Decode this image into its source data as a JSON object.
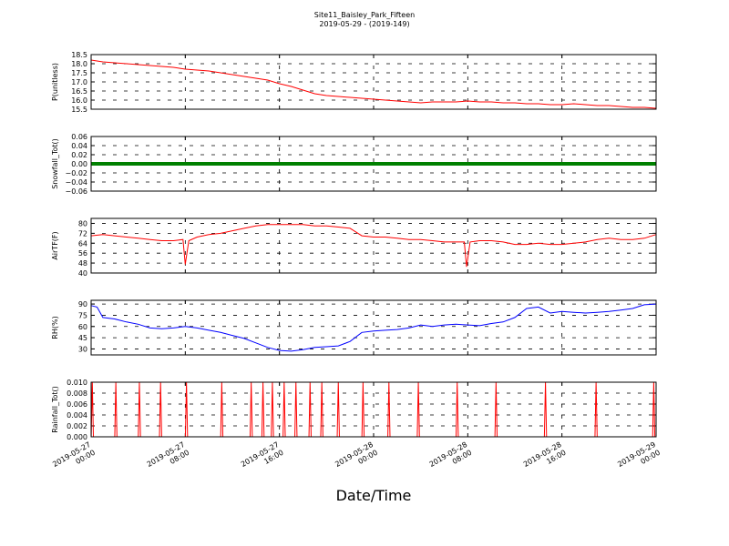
{
  "figure": {
    "title_line1": "Site11_Baisley_Park_Fifteen",
    "title_line2": "2019-05-29 - (2019-149)",
    "xlabel": "Date/Time"
  },
  "chart_data": {
    "type": "line",
    "x_ticks": [
      "2019-05-27\n00:00",
      "2019-05-27\n08:00",
      "2019-05-27\n16:00",
      "2019-05-28\n00:00",
      "2019-05-28\n08:00",
      "2019-05-28\n16:00",
      "2019-05-29\n00:00"
    ],
    "x_range_hours": [
      0,
      48
    ],
    "grid": true,
    "panels": [
      {
        "ylabel": "P(unitless)",
        "ylim": [
          15.5,
          18.5
        ],
        "yticks": [
          "18.5",
          "18.0",
          "17.5",
          "17.0",
          "16.5",
          "16.0",
          "15.5"
        ],
        "ytick_values": [
          18.5,
          18.0,
          17.5,
          17.0,
          16.5,
          16.0,
          15.5
        ],
        "color": "#ff0000",
        "x": [
          0,
          1,
          2,
          3,
          4,
          5,
          6,
          7,
          8,
          9,
          10,
          11,
          12,
          13,
          14,
          15,
          16,
          17,
          18,
          19,
          20,
          21,
          22,
          23,
          24,
          25,
          26,
          27,
          28,
          29,
          30,
          31,
          32,
          33,
          34,
          35,
          36,
          37,
          38,
          39,
          40,
          41,
          42,
          43,
          44,
          45,
          46,
          47,
          48
        ],
        "values": [
          18.2,
          18.1,
          18.05,
          18.0,
          17.95,
          17.9,
          17.85,
          17.8,
          17.7,
          17.65,
          17.6,
          17.5,
          17.4,
          17.3,
          17.2,
          17.1,
          16.9,
          16.75,
          16.55,
          16.35,
          16.25,
          16.2,
          16.15,
          16.1,
          16.05,
          16.0,
          15.95,
          15.9,
          15.85,
          15.9,
          15.9,
          15.9,
          15.95,
          15.9,
          15.9,
          15.85,
          15.85,
          15.8,
          15.8,
          15.75,
          15.75,
          15.8,
          15.75,
          15.7,
          15.7,
          15.65,
          15.6,
          15.6,
          15.55
        ]
      },
      {
        "ylabel": "Snowfall_Tot()",
        "ylim": [
          -0.06,
          0.06
        ],
        "yticks": [
          "0.06",
          "0.04",
          "0.02",
          "0.00",
          "−0.02",
          "−0.04",
          "−0.06"
        ],
        "ytick_values": [
          0.06,
          0.04,
          0.02,
          0.0,
          -0.02,
          -0.04,
          -0.06
        ],
        "color": "#008000",
        "x": [
          0,
          48
        ],
        "values": [
          0.0,
          0.0
        ]
      },
      {
        "ylabel": "AirTF(F)",
        "ylim": [
          40,
          84
        ],
        "yticks": [
          "80",
          "72",
          "64",
          "56",
          "48",
          "40"
        ],
        "ytick_values": [
          80,
          72,
          64,
          56,
          48,
          40
        ],
        "color": "#ff0000",
        "x": [
          0,
          1,
          2,
          3,
          4,
          5,
          6,
          7,
          7.8,
          8,
          8.3,
          9,
          10,
          11,
          12,
          13,
          14,
          15,
          16,
          17,
          18,
          19,
          20,
          21,
          22,
          23,
          24,
          25,
          26,
          27,
          28,
          29,
          30,
          31,
          31.7,
          31.9,
          32.2,
          33,
          34,
          35,
          36,
          37,
          38,
          39,
          40,
          41,
          42,
          43,
          44,
          45,
          46,
          47,
          48
        ],
        "values": [
          70,
          71,
          70,
          69,
          68,
          67,
          66,
          66,
          67,
          47,
          66,
          69,
          71,
          72,
          74,
          76,
          78,
          79,
          79,
          79,
          79,
          78,
          78,
          77,
          76,
          70,
          69,
          69,
          68,
          67,
          67,
          66,
          65,
          65,
          65,
          45,
          65,
          66,
          66,
          65,
          63,
          63,
          64,
          63,
          63,
          64,
          65,
          67,
          68,
          67,
          67,
          68,
          71
        ],
        "min_callouts": [
          "47",
          "45"
        ]
      },
      {
        "ylabel": "RH(%)",
        "ylim": [
          22,
          95
        ],
        "yticks": [
          "90",
          "75",
          "60",
          "45",
          "30"
        ],
        "ytick_values": [
          90,
          75,
          60,
          45,
          30
        ],
        "color": "#0000ff",
        "x": [
          0,
          0.5,
          1,
          2,
          3,
          4,
          5,
          6,
          7,
          8,
          9,
          10,
          11,
          12,
          13,
          14,
          15,
          16,
          17,
          18,
          19,
          20,
          21,
          22,
          23,
          24,
          25,
          26,
          27,
          28,
          29,
          30,
          31,
          32,
          33,
          34,
          35,
          36,
          37,
          38,
          39,
          40,
          41,
          42,
          43,
          44,
          45,
          46,
          47,
          48
        ],
        "values": [
          88,
          86,
          72,
          70,
          66,
          63,
          58,
          57,
          58,
          60,
          58,
          55,
          52,
          48,
          44,
          38,
          32,
          28,
          27,
          29,
          32,
          33,
          34,
          40,
          52,
          54,
          55,
          56,
          58,
          62,
          60,
          62,
          63,
          62,
          61,
          64,
          66,
          72,
          84,
          86,
          78,
          80,
          79,
          78,
          79,
          80,
          82,
          84,
          89,
          90
        ]
      },
      {
        "ylabel": "Rainfall_Tot()",
        "ylim": [
          0.0,
          0.01
        ],
        "yticks": [
          "0.010",
          "0.008",
          "0.006",
          "0.004",
          "0.002",
          "0.000"
        ],
        "ytick_values": [
          0.01,
          0.008,
          0.006,
          0.004,
          0.002,
          0.0
        ],
        "color": "#ff0000",
        "spikes_x_hours": [
          0.1,
          2.1,
          4.1,
          5.9,
          8.1,
          11.1,
          13.6,
          14.6,
          15.4,
          16.4,
          17.4,
          18.6,
          19.6,
          21.0,
          23.1,
          25.3,
          27.8,
          31.1,
          34.4,
          38.6,
          42.9,
          47.8
        ],
        "spike_value": 0.01
      }
    ]
  }
}
